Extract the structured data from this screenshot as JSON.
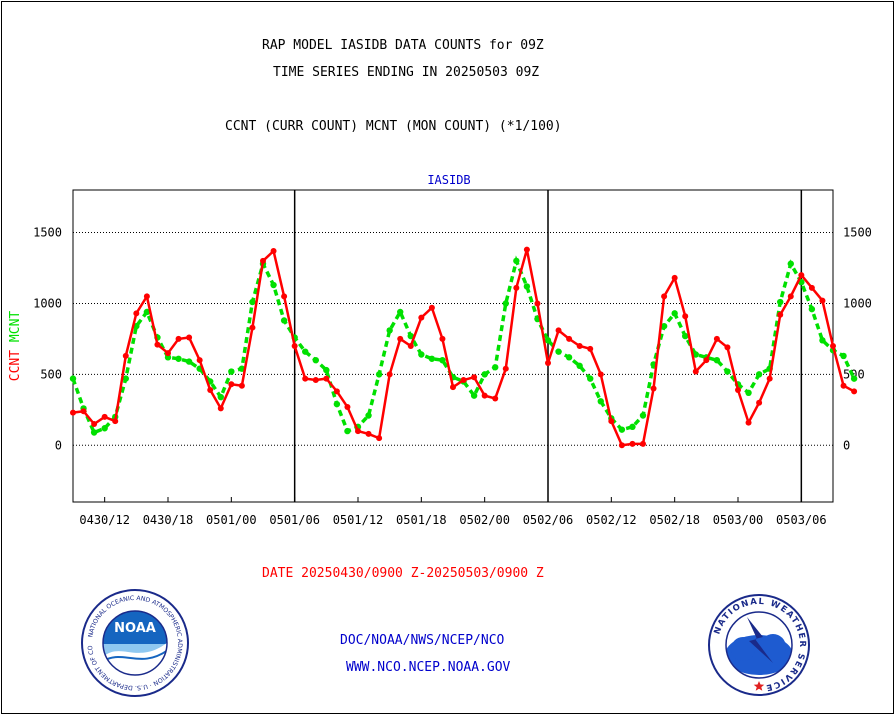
{
  "header": {
    "title_line1": "RAP MODEL IASIDB DATA COUNTS for 09Z",
    "title_line2": "TIME SERIES ENDING IN 20250503 09Z",
    "description": "CCNT (CURR COUNT) MCNT (MON COUNT) (*1/100)"
  },
  "footer": {
    "date_range": "DATE 20250430/0900 Z-20250503/0900 Z",
    "org_path": "DOC/NOAA/NWS/NCEP/NCO",
    "website": "WWW.NCO.NCEP.NOAA.GOV"
  },
  "logos": {
    "noaa_text": "NOAA",
    "noaa_ring": "NATIONAL OCEANIC AND ATMOSPHERIC ADMINISTRATION · U.S. DEPARTMENT OF COMMERCE",
    "nws_ring": "NATIONAL WEATHER SERVICE"
  },
  "colors": {
    "ccnt": "#ff0000",
    "mcnt": "#00e000",
    "title_text": "#000000",
    "series_label_text": "#0000cc",
    "date_text": "#ff0000",
    "footer_text": "#0000cc"
  },
  "chart_data": {
    "type": "line",
    "title": "IASIDB",
    "ylabel_parts": [
      {
        "text": "CCNT",
        "color": "#ff0000"
      },
      {
        "text": "MCNT",
        "color": "#00e000"
      }
    ],
    "ylim": [
      -400,
      1800
    ],
    "yticks": [
      0,
      500,
      1000,
      1500
    ],
    "xlim": [
      0,
      72
    ],
    "xticks": [
      {
        "x": 3,
        "label": "0430/12"
      },
      {
        "x": 9,
        "label": "0430/18"
      },
      {
        "x": 15,
        "label": "0501/00"
      },
      {
        "x": 21,
        "label": "0501/06"
      },
      {
        "x": 27,
        "label": "0501/12"
      },
      {
        "x": 33,
        "label": "0501/18"
      },
      {
        "x": 39,
        "label": "0502/00"
      },
      {
        "x": 45,
        "label": "0502/06"
      },
      {
        "x": 51,
        "label": "0502/12"
      },
      {
        "x": 57,
        "label": "0502/18"
      },
      {
        "x": 63,
        "label": "0503/00"
      },
      {
        "x": 69,
        "label": "0503/06"
      }
    ],
    "day_separators": [
      21,
      45,
      69
    ],
    "grid": "horizontal dotted",
    "series": [
      {
        "name": "CCNT",
        "color": "#ff0000",
        "values": [
          230,
          240,
          150,
          200,
          170,
          630,
          930,
          1050,
          710,
          650,
          750,
          760,
          600,
          390,
          260,
          430,
          420,
          830,
          1300,
          1370,
          1050,
          700,
          470,
          460,
          470,
          380,
          270,
          100,
          80,
          50,
          500,
          750,
          700,
          900,
          970,
          750,
          410,
          460,
          480,
          350,
          330,
          540,
          1110,
          1380,
          1000,
          580,
          810,
          750,
          700,
          680,
          500,
          170,
          0,
          10,
          10,
          400,
          1050,
          1180,
          910,
          520,
          600,
          750,
          690,
          390,
          160,
          300,
          470,
          920,
          1050,
          1200,
          1110,
          1020,
          700,
          420,
          380
        ]
      },
      {
        "name": "MCNT",
        "color": "#00e000",
        "values": [
          470,
          260,
          90,
          120,
          200,
          470,
          840,
          940,
          760,
          620,
          610,
          590,
          540,
          450,
          340,
          520,
          540,
          1010,
          1280,
          1130,
          880,
          760,
          660,
          600,
          530,
          290,
          100,
          130,
          210,
          500,
          810,
          940,
          770,
          640,
          610,
          600,
          480,
          450,
          350,
          500,
          550,
          1000,
          1300,
          1120,
          890,
          740,
          660,
          620,
          560,
          470,
          310,
          190,
          110,
          130,
          210,
          570,
          840,
          930,
          770,
          640,
          620,
          600,
          520,
          430,
          370,
          500,
          540,
          1010,
          1280,
          1150,
          960,
          740,
          670,
          630,
          470
        ]
      }
    ]
  }
}
